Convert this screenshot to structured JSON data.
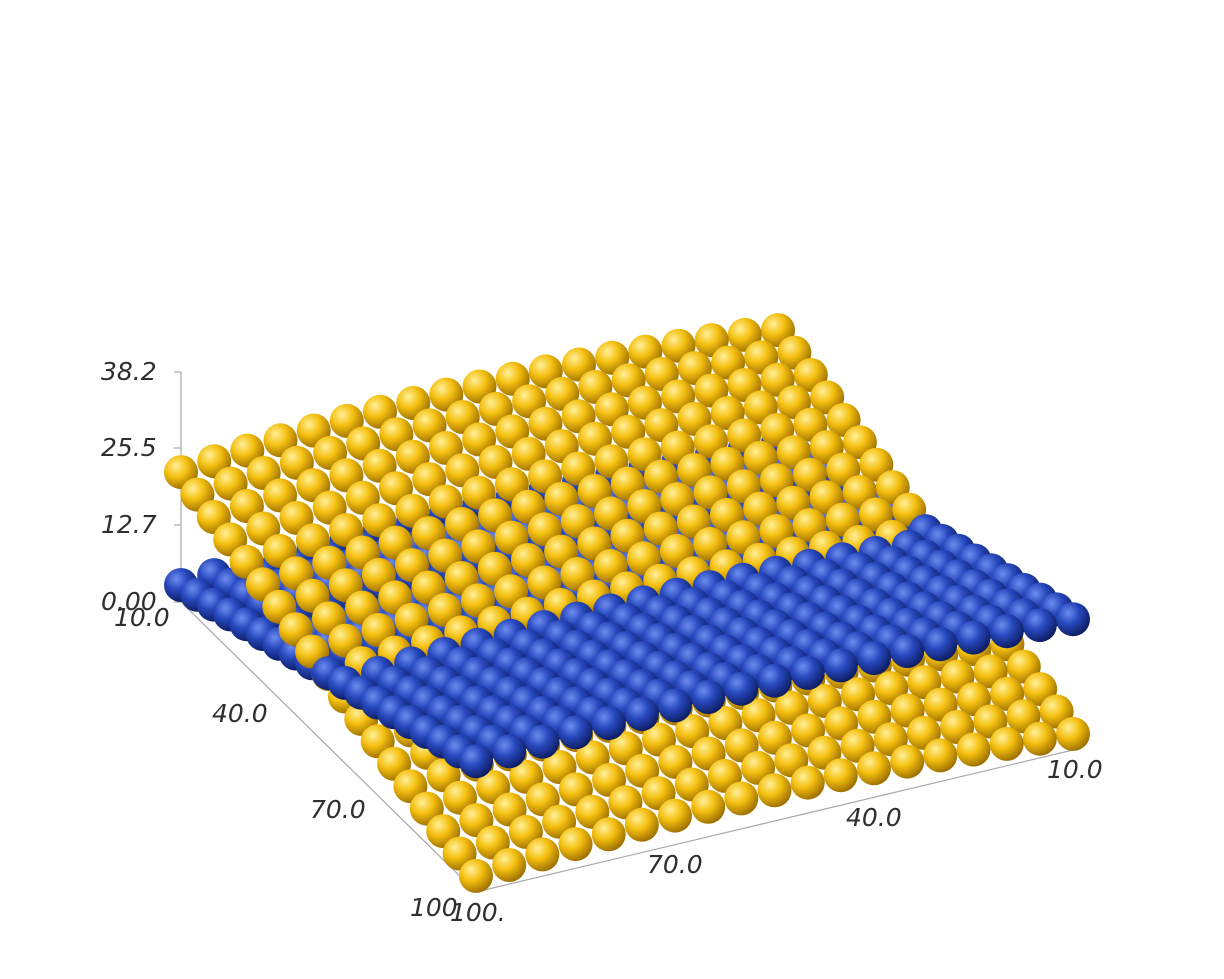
{
  "chart_data": {
    "type": "scatter",
    "subtype": "3d-sphere-scatter",
    "title": "",
    "xlabel": "",
    "ylabel": "",
    "zlabel": "",
    "xlim": [
      10,
      100
    ],
    "ylim": [
      10,
      100
    ],
    "zlim": [
      0,
      38.2
    ],
    "x_ticks": [
      "10.0",
      "40.0",
      "70.0",
      "100."
    ],
    "y_ticks": [
      "10.0",
      "40.0",
      "70.0",
      "100"
    ],
    "z_ticks": [
      "0.00",
      "12.7",
      "25.5",
      "38.2"
    ],
    "grid": false,
    "legend": "none",
    "grid_points_per_axis": 19,
    "series": [
      {
        "color": "#1f3fb0",
        "surface": "z = 0.21*y - 0.00078*(x-55)^2 + 2.3",
        "z_range": [
          2,
          23
        ]
      },
      {
        "color": "#f2b90c",
        "surface": "z = 26.1 - 0.21*y - 0.00120*(x-55)^2",
        "z_range": [
          2,
          26
        ]
      }
    ]
  }
}
